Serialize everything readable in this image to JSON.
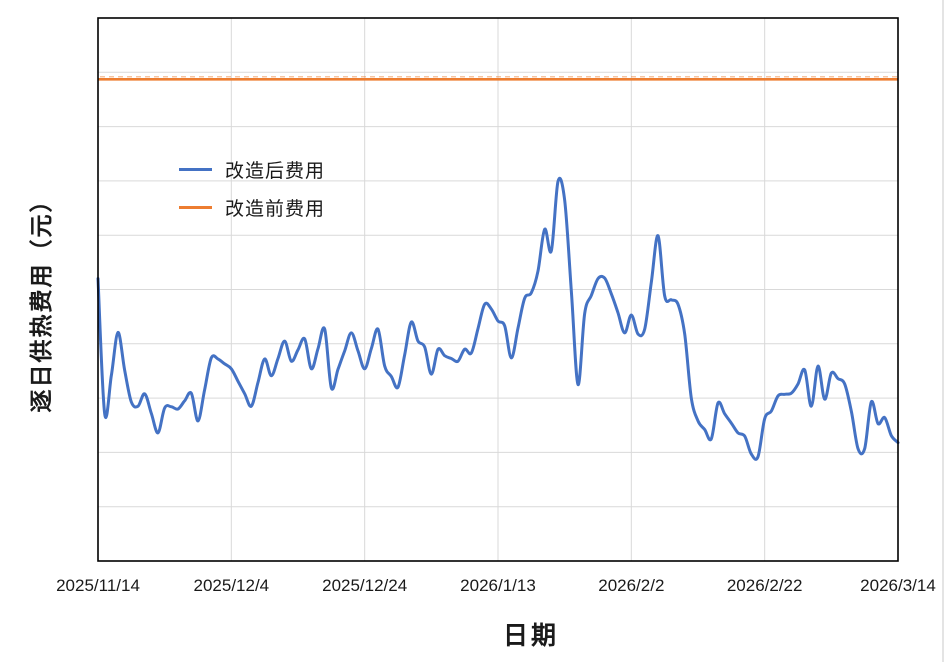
{
  "chart_data": {
    "type": "line",
    "title": "",
    "xlabel": "日期",
    "ylabel": "逐日供热费用（元）",
    "grid": true,
    "legend_position": "inside-top-left",
    "x_axis": {
      "tick_labels": [
        "2025/11/14",
        "2025/12/4",
        "2025/12/24",
        "2026/1/13",
        "2026/2/2",
        "2026/2/22",
        "2026/3/14"
      ],
      "start_date": "2025/11/14",
      "end_date": "2026/3/14",
      "span_days": 120,
      "tick_interval_days": 20
    },
    "y_axis": {
      "tick_labels_visible": false,
      "gridline_divisions": 10,
      "units": "relative scale 0-100 (axis shows no numeric tick labels; 0 = x-axis, 100 = plot top)"
    },
    "series": [
      {
        "name": "改造后费用",
        "color": "#4472C4",
        "style": "smooth-line",
        "x_unit": "day offset from 2025/11/14 (daily values)",
        "values": [
          52.0,
          27.1,
          34.1,
          42.1,
          35.1,
          29.3,
          28.5,
          30.8,
          27.2,
          23.6,
          28.2,
          28.4,
          28.0,
          29.5,
          30.9,
          25.8,
          31.6,
          37.4,
          37.2,
          36.3,
          35.4,
          33.1,
          30.8,
          28.5,
          32.9,
          37.2,
          34.1,
          37.3,
          40.5,
          36.8,
          38.9,
          40.9,
          35.4,
          39.1,
          42.7,
          31.9,
          35.3,
          38.7,
          42.0,
          38.7,
          35.4,
          39.1,
          42.7,
          35.9,
          34.0,
          32.0,
          38.0,
          44.0,
          40.5,
          39.4,
          34.4,
          39.0,
          37.8,
          37.3,
          36.8,
          39.0,
          38.3,
          42.8,
          47.3,
          46.4,
          44.2,
          43.3,
          37.4,
          42.9,
          48.4,
          49.4,
          53.4,
          61.1,
          57.1,
          69.9,
          66.4,
          49.8,
          32.5,
          45.6,
          48.9,
          52.0,
          52.1,
          49.2,
          45.7,
          42.0,
          45.3,
          41.8,
          42.7,
          51.3,
          59.9,
          48.8,
          48.1,
          47.3,
          41.8,
          30.0,
          25.8,
          24.2,
          22.5,
          29.1,
          27.1,
          25.4,
          23.6,
          23.0,
          19.7,
          19.2,
          26.2,
          27.6,
          30.4,
          30.7,
          30.9,
          32.6,
          35.2,
          28.5,
          35.9,
          29.8,
          34.6,
          33.6,
          32.6,
          27.6,
          20.7,
          20.7,
          29.3,
          25.3,
          26.4,
          23.1,
          21.8
        ]
      },
      {
        "name": "改造前费用",
        "color": "#ED7D31",
        "style": "constant-line-with-dash-markers",
        "constant_value": 88.7
      }
    ]
  },
  "legend": {
    "items": [
      {
        "label": "改造后费用",
        "color": "#4472C4"
      },
      {
        "label": "改造前费用",
        "color": "#ED7D31"
      }
    ]
  },
  "colors": {
    "after_line": "#4472C4",
    "before_line": "#ED7D31",
    "gridline": "#D9D9D9",
    "plot_border": "#000000",
    "text": "#1A1A1A",
    "background": "#FFFFFF",
    "frame_edge": "#C8C8C8"
  }
}
